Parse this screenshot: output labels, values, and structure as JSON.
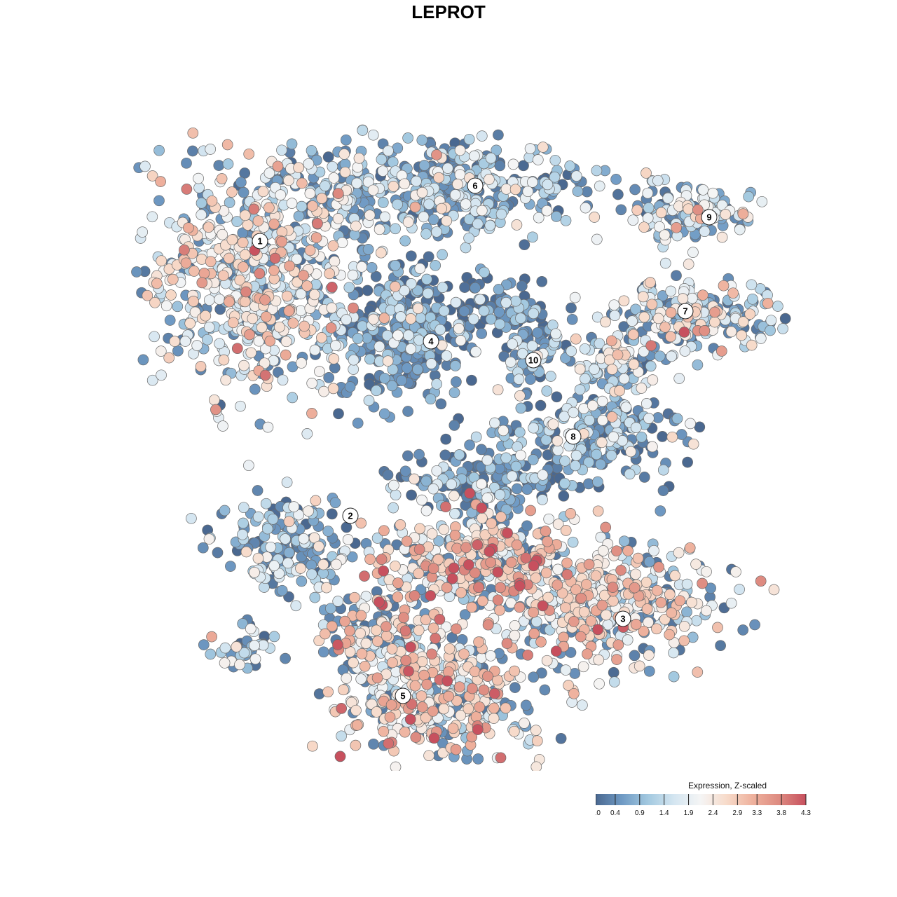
{
  "chart_data": {
    "type": "scatter",
    "title": "LEPROT",
    "legend": {
      "title": "Expression, Z-scaled",
      "ticks": [
        "0.0",
        "0.4",
        "0.9",
        "1.4",
        "1.9",
        "2.4",
        "2.9",
        "3.3",
        "3.8",
        "4.3"
      ],
      "range": [
        0.0,
        4.3
      ],
      "colors": [
        "#4a6890",
        "#6f9ac4",
        "#a3c9e0",
        "#d5e6f1",
        "#f5f5f5",
        "#f7dac9",
        "#eeb09c",
        "#dd8a80",
        "#c7505e"
      ]
    },
    "clusters": [
      {
        "label": "1",
        "mean_expression": 2.0
      },
      {
        "label": "2",
        "mean_expression": 0.9
      },
      {
        "label": "3",
        "mean_expression": 2.2
      },
      {
        "label": "4",
        "mean_expression": 0.5
      },
      {
        "label": "5",
        "mean_expression": 2.4
      },
      {
        "label": "6",
        "mean_expression": 1.2
      },
      {
        "label": "7",
        "mean_expression": 1.7
      },
      {
        "label": "8",
        "mean_expression": 1.0
      },
      {
        "label": "9",
        "mean_expression": 1.5
      },
      {
        "label": "10",
        "mean_expression": 0.9
      }
    ]
  }
}
